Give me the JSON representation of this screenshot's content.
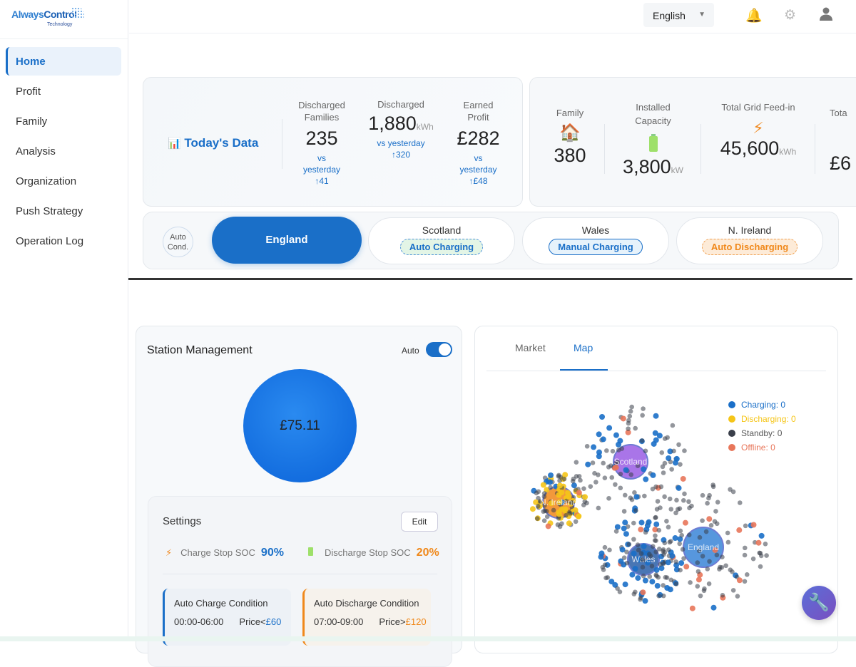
{
  "brand": {
    "name_a": "Always",
    "name_b": "Control",
    "tagline": "Technology"
  },
  "sidebar": {
    "items": [
      {
        "label": "Home",
        "active": true
      },
      {
        "label": "Profit"
      },
      {
        "label": "Family"
      },
      {
        "label": "Analysis"
      },
      {
        "label": "Organization"
      },
      {
        "label": "Push Strategy"
      },
      {
        "label": "Operation Log"
      }
    ]
  },
  "header": {
    "language": "English",
    "icons": [
      "bell-icon",
      "gear-icon",
      "user-icon"
    ]
  },
  "today": {
    "title": "Today's Data",
    "icon": "bar-chart-icon",
    "stats": [
      {
        "label": "Discharged Families",
        "value": "235",
        "unit": "",
        "compare": "vs yesterday",
        "delta": "↑41"
      },
      {
        "label": "Discharged",
        "value": "1,880",
        "unit": "kWh",
        "compare": "vs yesterday",
        "delta": "↑320"
      },
      {
        "label": "Earned Profit",
        "value": "£282",
        "unit": "",
        "compare": "vs yesterday",
        "delta": "↑£48"
      }
    ]
  },
  "totals": [
    {
      "label": "Family",
      "icon": "house-icon",
      "value": "380",
      "unit": ""
    },
    {
      "label": "Installed Capacity",
      "icon": "battery-icon",
      "value": "3,800",
      "unit": "kW"
    },
    {
      "label": "Total Grid Feed-in",
      "icon": "lightning-icon",
      "value": "45,600",
      "unit": "kWh"
    },
    {
      "label": "Tota",
      "icon": "",
      "value": "£6",
      "unit": ""
    }
  ],
  "regions": {
    "auto_cond": "Auto Cond.",
    "items": [
      {
        "name": "England",
        "active": true,
        "status": ""
      },
      {
        "name": "Scotland",
        "status": "Auto Charging"
      },
      {
        "name": "Wales",
        "status": "Manual Charging"
      },
      {
        "name": "N. Ireland",
        "status": "Auto Discharging"
      }
    ]
  },
  "station": {
    "title": "Station Management",
    "auto_label": "Auto",
    "auto_on": true,
    "value": "£75.11",
    "settings": {
      "title": "Settings",
      "edit": "Edit",
      "charge_soc_label": "Charge Stop SOC",
      "charge_soc": "90%",
      "discharge_soc_label": "Discharge Stop SOC",
      "discharge_soc": "20%",
      "charge_cond": {
        "title": "Auto Charge Condition",
        "time": "00:00-06:00",
        "price_label": "Price<",
        "price": "£60"
      },
      "discharge_cond": {
        "title": "Auto Discharge Condition",
        "time": "07:00-09:00",
        "price_label": "Price>",
        "price": "£120"
      }
    }
  },
  "map": {
    "tabs": [
      "Market",
      "Map"
    ],
    "active_tab": "Map",
    "legend": [
      {
        "label": "Charging: 0",
        "color": "#1a6fc8"
      },
      {
        "label": "Discharging: 0",
        "color": "#f5c518"
      },
      {
        "label": "Standby: 0",
        "color": "#3a3f4a"
      },
      {
        "label": "Offline: 0",
        "color": "#e8765a"
      }
    ],
    "clusters": [
      {
        "label": "Scotland",
        "color": "#9b5de5"
      },
      {
        "label": "N. Ireland",
        "color": "#f0881a"
      },
      {
        "label": "Wales",
        "color": "#2a5fa8"
      },
      {
        "label": "England",
        "color": "#3a86d8"
      }
    ]
  },
  "colors": {
    "accent": "#1a6fc8",
    "orange": "#f0881a"
  }
}
